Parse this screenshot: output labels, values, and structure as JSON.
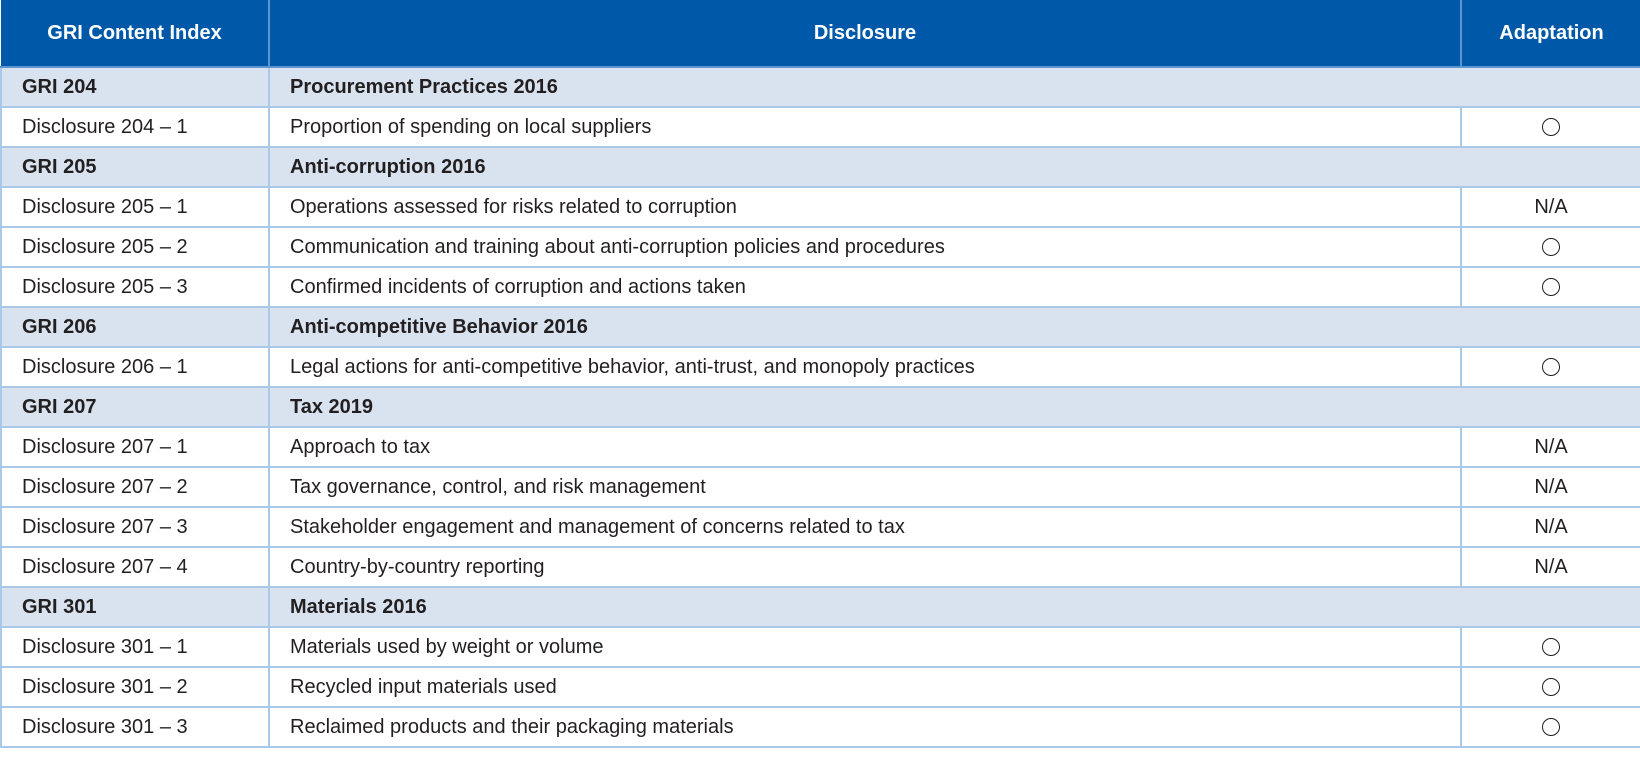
{
  "header": {
    "col1": "GRI Content Index",
    "col2": "Disclosure",
    "col3": "Adaptation"
  },
  "rows": [
    {
      "type": "section",
      "code": "GRI 204",
      "title": "Procurement Practices 2016"
    },
    {
      "type": "item",
      "code": "Disclosure 204 – 1",
      "title": "Proportion of spending on local suppliers",
      "adaptation": "circle"
    },
    {
      "type": "section",
      "code": "GRI 205",
      "title": "Anti-corruption 2016"
    },
    {
      "type": "item",
      "code": "Disclosure 205 – 1",
      "title": "Operations assessed for risks related to corruption",
      "adaptation": "N/A"
    },
    {
      "type": "item",
      "code": "Disclosure 205 – 2",
      "title": "Communication and training about anti-corruption policies and procedures",
      "adaptation": "circle"
    },
    {
      "type": "item",
      "code": "Disclosure 205 – 3",
      "title": "Confirmed incidents of corruption and actions taken",
      "adaptation": "circle"
    },
    {
      "type": "section",
      "code": "GRI 206",
      "title": "Anti-competitive Behavior 2016"
    },
    {
      "type": "item",
      "code": "Disclosure 206 – 1",
      "title": "Legal actions for anti-competitive behavior, anti-trust, and monopoly practices",
      "adaptation": "circle"
    },
    {
      "type": "section",
      "code": "GRI 207",
      "title": "Tax 2019"
    },
    {
      "type": "item",
      "code": "Disclosure 207 – 1",
      "title": "Approach to tax",
      "adaptation": "N/A"
    },
    {
      "type": "item",
      "code": "Disclosure 207 – 2",
      "title": "Tax governance, control, and risk management",
      "adaptation": "N/A"
    },
    {
      "type": "item",
      "code": "Disclosure 207 – 3",
      "title": "Stakeholder engagement and management of concerns related to tax",
      "adaptation": "N/A"
    },
    {
      "type": "item",
      "code": "Disclosure 207 – 4",
      "title": "Country-by-country reporting",
      "adaptation": "N/A"
    },
    {
      "type": "section",
      "code": "GRI 301",
      "title": "Materials 2016"
    },
    {
      "type": "item",
      "code": "Disclosure 301 – 1",
      "title": "Materials used by weight or volume",
      "adaptation": "circle"
    },
    {
      "type": "item",
      "code": "Disclosure 301 – 2",
      "title": "Recycled input materials used",
      "adaptation": "circle"
    },
    {
      "type": "item",
      "code": "Disclosure 301 – 3",
      "title": "Reclaimed products and their packaging materials",
      "adaptation": "circle"
    }
  ]
}
